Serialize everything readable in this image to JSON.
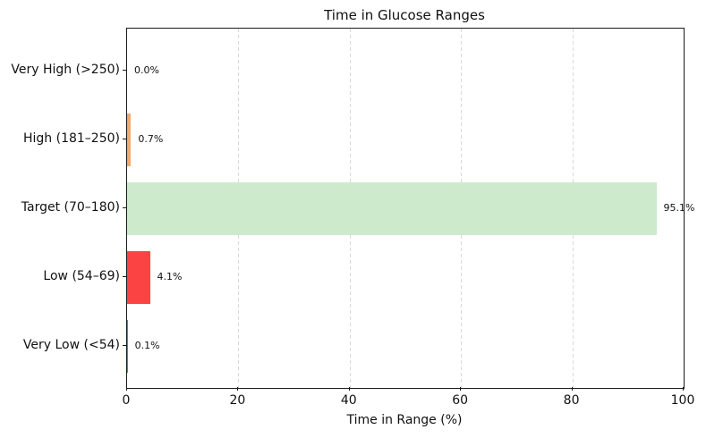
{
  "chart_data": {
    "type": "bar",
    "orientation": "horizontal",
    "title": "Time in Glucose Ranges",
    "xlabel": "Time in Range (%)",
    "ylabel": "",
    "categories": [
      "Very High (>250)",
      "High (181–250)",
      "Target (70–180)",
      "Low (54–69)",
      "Very Low (<54)"
    ],
    "values": [
      0.0,
      0.7,
      95.1,
      4.1,
      0.1
    ],
    "value_labels": [
      "0.0%",
      "0.7%",
      "95.1%",
      "4.1%",
      "0.1%"
    ],
    "bar_colors": [
      "#f4a96b",
      "#f4a96b",
      "#cdeacd",
      "#fb4343",
      "#fb4343"
    ],
    "xlim": [
      0,
      100
    ],
    "xticks": [
      0,
      20,
      40,
      60,
      80,
      100
    ],
    "xtick_labels": [
      "0",
      "20",
      "40",
      "60",
      "80",
      "100"
    ],
    "grid": "vertical-dashed",
    "legend": "none"
  },
  "colors": {
    "grid": "#d9d9d9",
    "spine": "#1a1a1a",
    "text": "#111111",
    "background": "#ffffff"
  }
}
